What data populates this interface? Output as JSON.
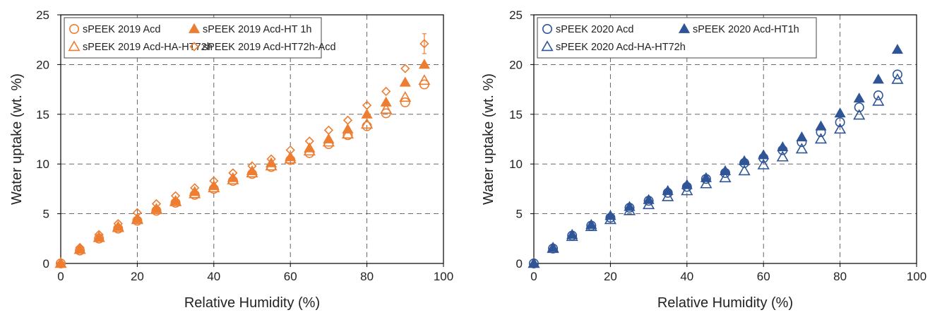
{
  "chart_data": [
    {
      "type": "scatter",
      "title": "",
      "xlabel": "Relative Humidity (%)",
      "ylabel": "Water uptake (wt. %)",
      "xlim": [
        0,
        100
      ],
      "ylim": [
        0,
        25
      ],
      "xticks": [
        0,
        20,
        40,
        60,
        80,
        100
      ],
      "yticks": [
        0,
        5,
        10,
        15,
        20,
        25
      ],
      "grid": true,
      "legend_position": "top-left",
      "color": "#ED7D31",
      "x": [
        0,
        5,
        10,
        15,
        20,
        25,
        30,
        35,
        40,
        45,
        50,
        55,
        60,
        65,
        70,
        75,
        80,
        85,
        90,
        95
      ],
      "series": [
        {
          "name": "sPEEK 2019 Acd",
          "marker": "circle-open",
          "values": [
            0,
            1.3,
            2.5,
            3.5,
            4.3,
            5.3,
            6.1,
            6.9,
            7.5,
            8.3,
            9.0,
            9.7,
            10.4,
            11.1,
            12.0,
            12.9,
            13.8,
            15.1,
            16.2,
            18.0
          ]
        },
        {
          "name": "sPEEK 2019 Acd-HT 1h",
          "marker": "triangle-filled",
          "values": [
            0,
            1.4,
            2.6,
            3.7,
            4.5,
            5.5,
            6.3,
            7.2,
            7.8,
            8.6,
            9.3,
            10.1,
            10.7,
            11.6,
            12.5,
            13.5,
            15.0,
            16.2,
            18.2,
            20.0
          ]
        },
        {
          "name": "sPEEK 2019 Acd-HA-HT72h",
          "marker": "triangle-open",
          "values": [
            0,
            1.4,
            2.6,
            3.6,
            4.4,
            5.4,
            6.2,
            7.0,
            7.6,
            8.4,
            9.1,
            9.8,
            10.5,
            11.3,
            12.2,
            13.0,
            14.0,
            15.5,
            16.7,
            18.4
          ]
        },
        {
          "name": "sPEEK 2019 Acd-HT72h-Acd",
          "marker": "diamond-open",
          "values": [
            0,
            1.6,
            2.9,
            4.0,
            5.1,
            6.0,
            6.8,
            7.6,
            8.3,
            9.1,
            9.8,
            10.5,
            11.4,
            12.3,
            13.4,
            14.4,
            15.9,
            17.3,
            19.6,
            22.1
          ],
          "error_last": 1.0
        }
      ],
      "legend": {
        "row1": [
          "sPEEK 2019 Acd",
          "sPEEK 2019 Acd-HT 1h"
        ],
        "row2": [
          "sPEEK 2019 Acd-HA-HT72h",
          "sPEEK 2019 Acd-HT72h-Acd"
        ]
      }
    },
    {
      "type": "scatter",
      "title": "",
      "xlabel": "Relative Humidity (%)",
      "ylabel": "Water uptake (wt. %)",
      "xlim": [
        0,
        100
      ],
      "ylim": [
        0,
        25
      ],
      "xticks": [
        0,
        20,
        40,
        60,
        80,
        100
      ],
      "yticks": [
        0,
        5,
        10,
        15,
        20,
        25
      ],
      "grid": true,
      "legend_position": "top-left",
      "color": "#2F5597",
      "x": [
        0,
        5,
        10,
        15,
        20,
        25,
        30,
        35,
        40,
        45,
        50,
        55,
        60,
        65,
        70,
        75,
        80,
        85,
        90,
        95
      ],
      "series": [
        {
          "name": "sPEEK 2020 Acd",
          "marker": "circle-open",
          "values": [
            0,
            1.5,
            2.8,
            3.8,
            4.6,
            5.6,
            6.3,
            7.1,
            7.7,
            8.5,
            9.1,
            10.1,
            10.6,
            11.4,
            12.2,
            13.2,
            14.2,
            15.7,
            16.9,
            19.0
          ]
        },
        {
          "name": "sPEEK 2020 Acd-HT1h",
          "marker": "triangle-filled",
          "values": [
            0,
            1.6,
            2.9,
            3.9,
            4.8,
            5.7,
            6.4,
            7.3,
            7.9,
            8.6,
            9.3,
            10.3,
            10.9,
            11.7,
            12.7,
            13.8,
            15.1,
            16.6,
            18.5,
            21.5
          ]
        },
        {
          "name": "sPEEK 2020 Acd-HA-HT72h",
          "marker": "triangle-open",
          "values": [
            0,
            1.5,
            2.7,
            3.7,
            4.4,
            5.3,
            5.9,
            6.7,
            7.3,
            8.0,
            8.6,
            9.3,
            9.9,
            10.7,
            11.5,
            12.5,
            13.5,
            14.9,
            16.3,
            18.5
          ]
        }
      ],
      "legend": {
        "row1": [
          "sPEEK 2020 Acd",
          "sPEEK 2020 Acd-HT1h"
        ],
        "row2": [
          "sPEEK 2020 Acd-HA-HT72h"
        ]
      }
    }
  ]
}
